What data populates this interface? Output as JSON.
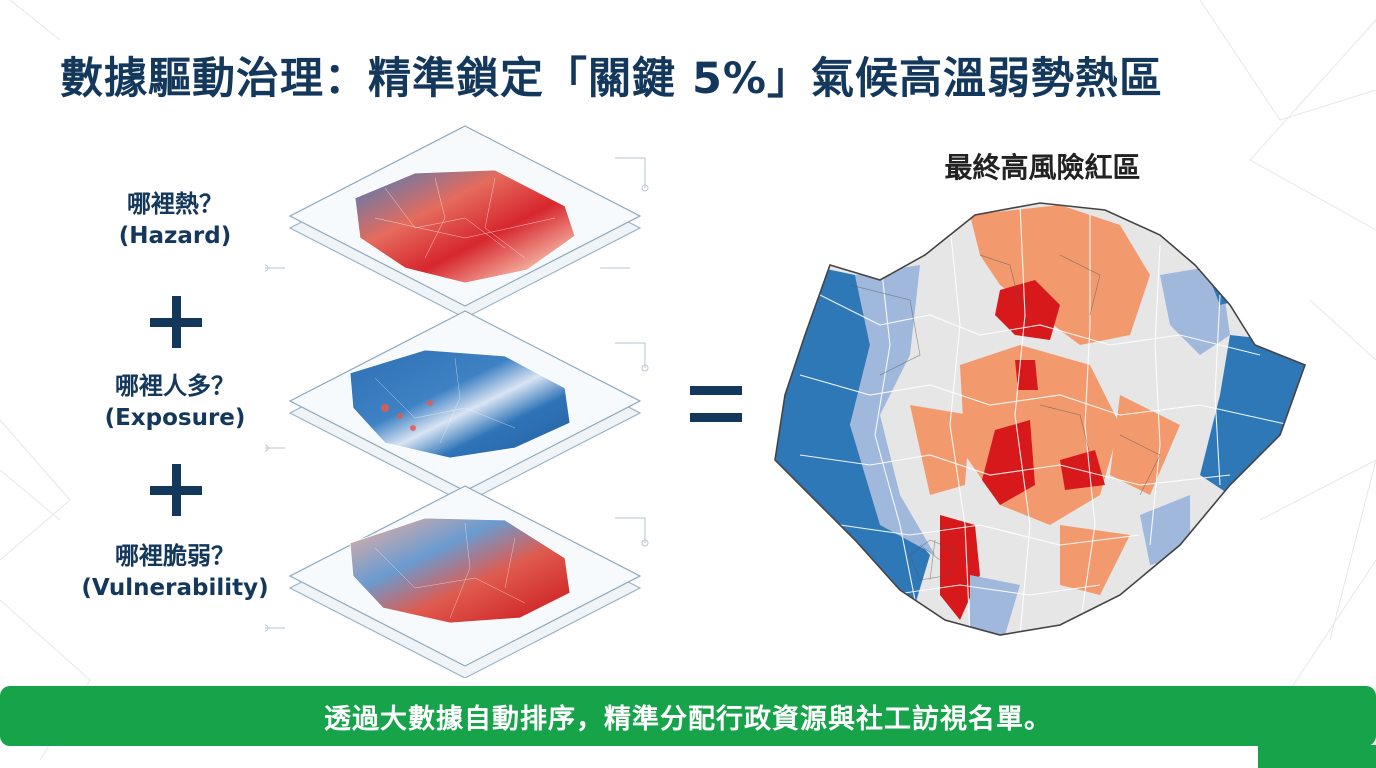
{
  "title": "數據驅動治理：精準鎖定「關鍵 5%」氣候高溫弱勢熱區",
  "layers": [
    {
      "question": "哪裡熱？",
      "english": "(Hazard)"
    },
    {
      "question": "哪裡人多？",
      "english": "(Exposure)"
    },
    {
      "question": "哪裡脆弱？",
      "english": "(Vulnerability)"
    }
  ],
  "result_title": "最終高風險紅區",
  "banner_text": "透過大數據自動排序，精準分配行政資源與社工訪視名單。",
  "colors": {
    "title": "#14385c",
    "banner": "#17a34a",
    "risk_high": "#d7191c",
    "risk_medium": "#f29a6e",
    "neutral": "#e6e6e6",
    "low_light": "#9fb8dc",
    "low": "#2f78b8"
  }
}
